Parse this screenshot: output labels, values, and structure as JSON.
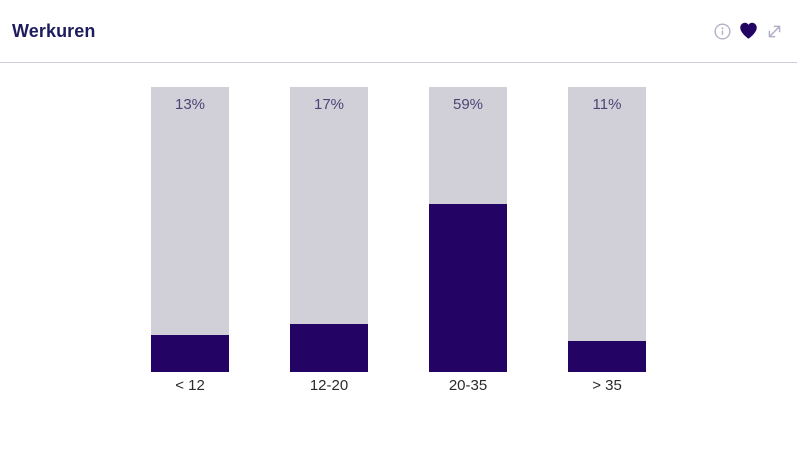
{
  "header": {
    "title": "Werkuren",
    "actions": [
      {
        "name": "info",
        "icon": "info-icon"
      },
      {
        "name": "favorite",
        "icon": "heart-icon"
      },
      {
        "name": "expand",
        "icon": "expand-icon"
      }
    ]
  },
  "colors": {
    "title": "#1e1b5e",
    "bar_fill": "#230364",
    "bar_track": "#d1d0d9",
    "value_label": "#4e4475",
    "category_label": "#2b2b2b",
    "divider": "#cfccdf",
    "muted_icon": "#b2afc8"
  },
  "chart_data": {
    "type": "bar",
    "subtype": "percent-fill-column",
    "title": "Werkuren",
    "categories": [
      "< 12",
      "12-20",
      "20-35",
      "> 35"
    ],
    "values": [
      13,
      17,
      59,
      11
    ],
    "value_labels": [
      "13%",
      "17%",
      "59%",
      "11%"
    ],
    "xlabel": "",
    "ylabel": "",
    "ylim": [
      0,
      100
    ],
    "grid": false,
    "legend": false,
    "value_label_position": "inside-top",
    "category_label_position": "below"
  }
}
